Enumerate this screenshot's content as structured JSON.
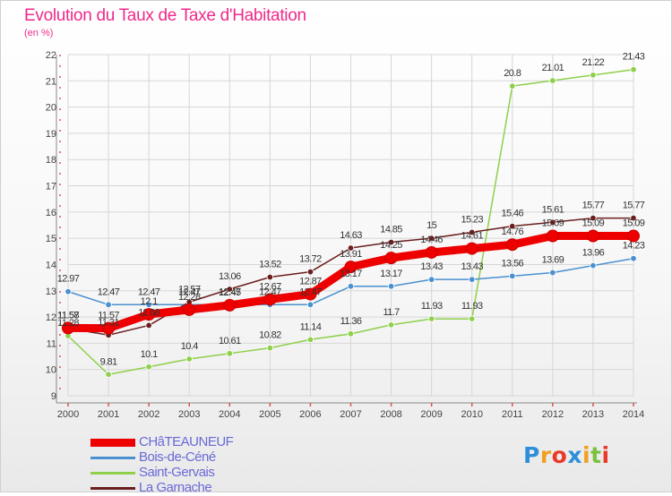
{
  "header": {
    "title": "Evolution du Taux de Taxe d'Habitation",
    "unit": "(en %)"
  },
  "brand": {
    "logo_text": "Proxiti"
  },
  "chart_data": {
    "type": "line",
    "title": "Evolution du Taux de Taxe d'Habitation",
    "ylabel": "(en %)",
    "xlabel": "",
    "ylim": [
      9,
      22
    ],
    "yticks": [
      9,
      10,
      11,
      12,
      13,
      14,
      15,
      16,
      17,
      18,
      19,
      20,
      21,
      22
    ],
    "grid": true,
    "legend_position": "bottom-left",
    "categories": [
      "2000",
      "2001",
      "2002",
      "2003",
      "2004",
      "2005",
      "2006",
      "2007",
      "2008",
      "2009",
      "2010",
      "2011",
      "2012",
      "2013",
      "2014"
    ],
    "series": [
      {
        "name": "CHâTEAUNEUF",
        "color": "#ee0000",
        "values": [
          11.58,
          11.57,
          12.1,
          12.28,
          12.45,
          12.67,
          12.87,
          13.91,
          14.25,
          14.46,
          14.61,
          14.76,
          15.09,
          15.09,
          15.09
        ],
        "labels": [
          "11.58",
          "11.57",
          "12.1",
          "12.28",
          "12.45",
          "12.67",
          "12.87",
          "13.91",
          "14.25",
          "14.46",
          "14.61",
          "14.76",
          "15.09",
          "15.09",
          "15.09"
        ]
      },
      {
        "name": "Bois-de-Céné",
        "color": "#4a90d0",
        "values": [
          12.97,
          12.47,
          12.47,
          12.47,
          12.47,
          12.47,
          12.47,
          13.17,
          13.17,
          13.43,
          13.43,
          13.56,
          13.69,
          13.96,
          14.23
        ],
        "labels": [
          "12.97",
          "12.47",
          "12.47",
          "12.47",
          "12.47",
          "12.47",
          "12.47",
          "13.17",
          "13.17",
          "13.43",
          "13.43",
          "13.56",
          "13.69",
          "13.96",
          "14.23"
        ]
      },
      {
        "name": "Saint-Gervais",
        "color": "#8ed04a",
        "values": [
          11.28,
          9.81,
          10.1,
          10.4,
          10.61,
          10.82,
          11.14,
          11.36,
          11.7,
          11.93,
          11.93,
          20.8,
          21.01,
          21.22,
          21.43
        ],
        "labels": [
          "11.28",
          "9.81",
          "10.1",
          "10.4",
          "10.61",
          "10.82",
          "11.14",
          "11.36",
          "11.7",
          "11.93",
          "11.93",
          "20.8",
          "21.01",
          "21.22",
          "21.43"
        ]
      },
      {
        "name": "La Garnache",
        "color": "#6b1e1e",
        "values": [
          11.57,
          11.31,
          11.68,
          12.57,
          13.06,
          13.52,
          13.72,
          14.63,
          14.85,
          15,
          15.23,
          15.46,
          15.61,
          15.77,
          15.77
        ],
        "labels": [
          "11.57",
          "11.31",
          "11.68",
          "12.57",
          "13.06",
          "13.52",
          "13.72",
          "14.63",
          "14.85",
          "15",
          "15.23",
          "15.46",
          "15.61",
          "15.77",
          "15.77"
        ]
      }
    ]
  }
}
